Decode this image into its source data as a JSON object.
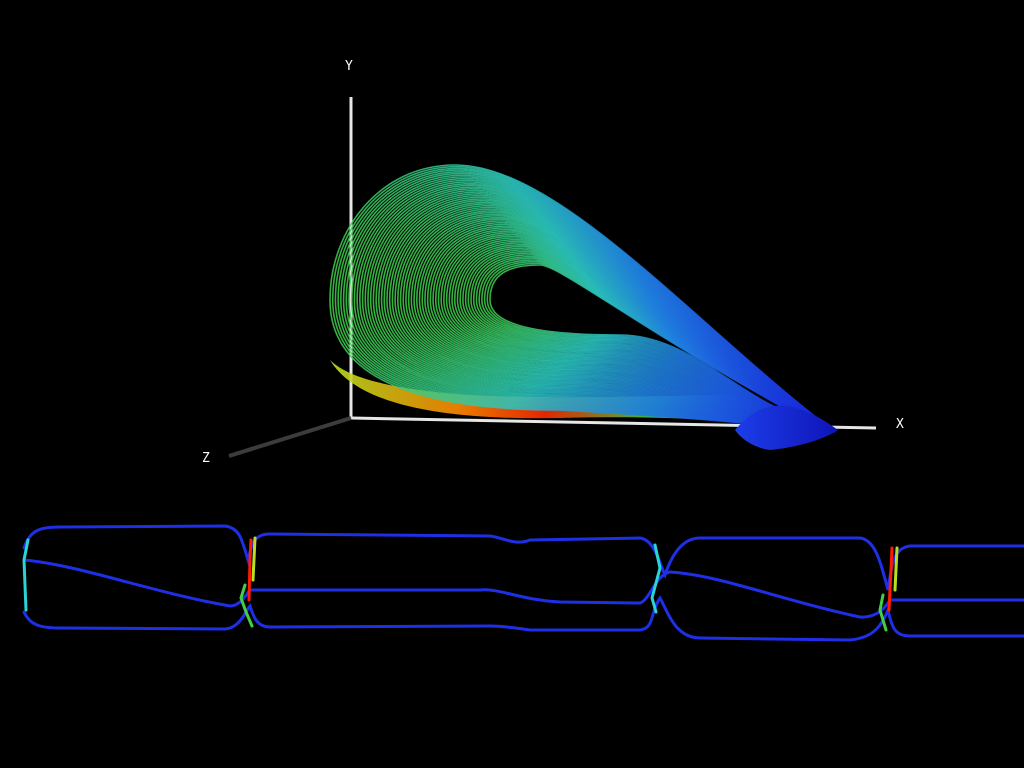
{
  "scene": {
    "background": "#000000",
    "axes": {
      "x_label": "X",
      "y_label": "Y",
      "z_label": "Z",
      "axis_color": "#e6e6e6",
      "z_axis_color": "#3c3c3c"
    },
    "colormap": [
      "#1a1aff",
      "#1f6fe0",
      "#2ad4d4",
      "#43cf43",
      "#b8e020",
      "#ff7a00",
      "#ff1a00"
    ],
    "attractor": {
      "name": "3d-attractor-tubes",
      "loop_count": 60
    },
    "time_series": {
      "name": "trajectory-component-plot",
      "track_count": 3
    }
  }
}
